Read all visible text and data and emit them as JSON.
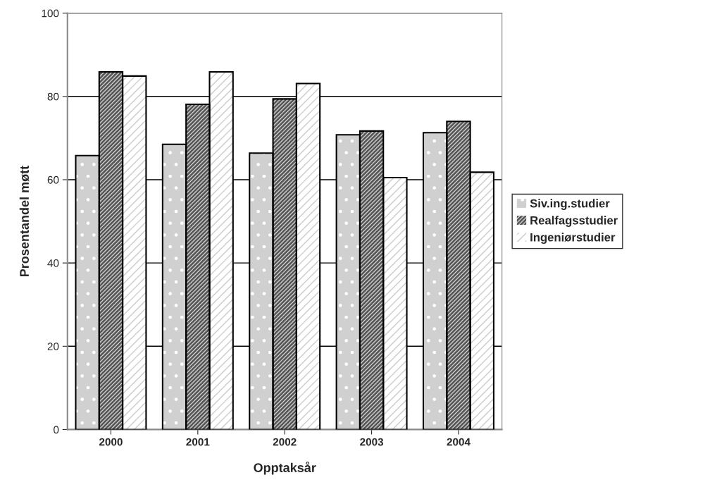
{
  "chart_data": {
    "type": "bar",
    "xlabel": "Opptaksår",
    "ylabel": "Prosentandel møtt",
    "categories": [
      "2000",
      "2001",
      "2002",
      "2003",
      "2004"
    ],
    "series": [
      {
        "name": "Siv.ing.studier",
        "color": "#d0d0d0",
        "values": [
          65.8,
          68.5,
          66.4,
          70.8,
          71.3
        ]
      },
      {
        "name": "Realfagsstudier",
        "color": "#555555",
        "values": [
          85.9,
          78.1,
          79.4,
          71.7,
          74.0
        ]
      },
      {
        "name": "Ingeniørstudier",
        "color": "#ffffff",
        "values": [
          84.9,
          85.9,
          83.1,
          60.5,
          61.8
        ]
      }
    ],
    "ylim": [
      0,
      100
    ],
    "yticks": [
      0,
      20,
      40,
      60,
      80,
      100
    ],
    "grid": "y",
    "legend": "right"
  }
}
